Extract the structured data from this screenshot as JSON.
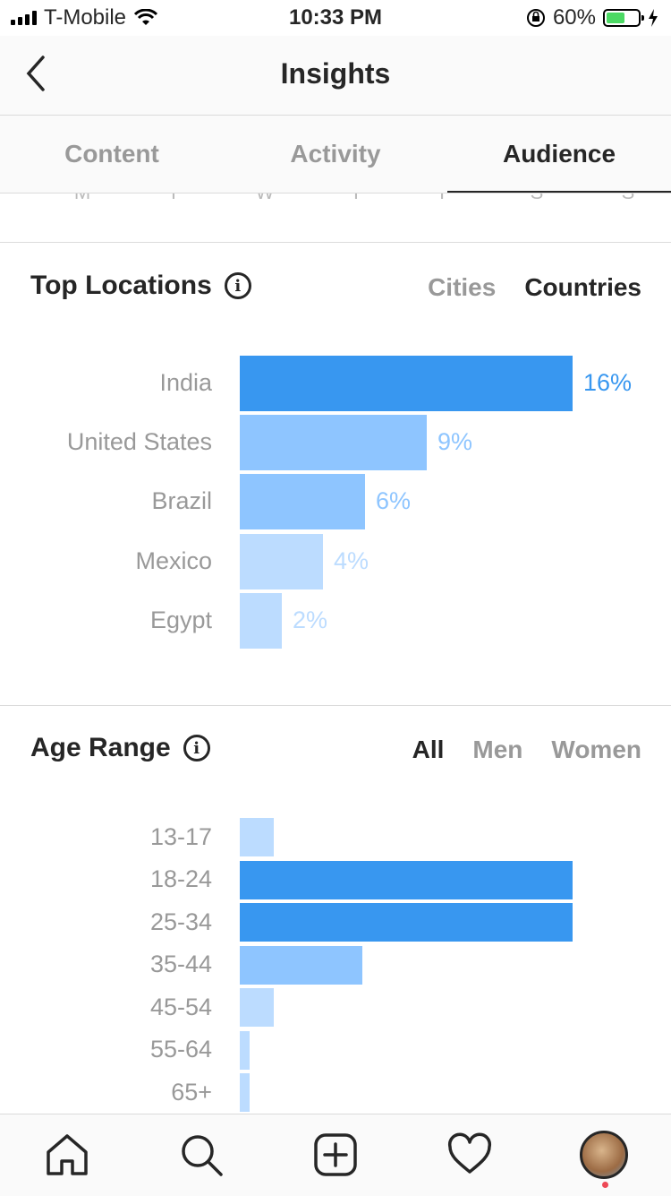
{
  "status": {
    "carrier": "T-Mobile",
    "time": "10:33 PM",
    "battery": "60%",
    "battery_level": 0.6
  },
  "header": {
    "title": "Insights"
  },
  "tabs": [
    {
      "label": "Content"
    },
    {
      "label": "Activity"
    },
    {
      "label": "Audience"
    }
  ],
  "days": [
    "M",
    "T",
    "W",
    "T",
    "F",
    "S",
    "S"
  ],
  "top_locations": {
    "title": "Top Locations",
    "filters": [
      {
        "label": "Cities"
      },
      {
        "label": "Countries"
      }
    ],
    "active_filter": "Countries"
  },
  "age_range": {
    "title": "Age Range",
    "filters": [
      {
        "label": "All"
      },
      {
        "label": "Men"
      },
      {
        "label": "Women"
      }
    ],
    "active_filter": "All"
  },
  "chart_data": [
    {
      "type": "bar",
      "title": "Top Locations",
      "categories": [
        "India",
        "United States",
        "Brazil",
        "Mexico",
        "Egypt"
      ],
      "values": [
        16,
        9,
        6,
        4,
        2
      ],
      "value_labels": [
        "16%",
        "9%",
        "6%",
        "4%",
        "2%"
      ],
      "colors": [
        "#3897f0",
        "#8ec5ff",
        "#8ec5ff",
        "#bcdcff",
        "#bcdcff"
      ],
      "label_colors": [
        "#3897f0",
        "#8ec5ff",
        "#8ec5ff",
        "#bcdcff",
        "#bcdcff"
      ],
      "xlim": [
        0,
        16
      ]
    },
    {
      "type": "bar",
      "title": "Age Range",
      "categories": [
        "13-17",
        "18-24",
        "25-34",
        "35-44",
        "45-54",
        "55-64",
        "65+"
      ],
      "values": [
        3.5,
        34,
        34,
        12.5,
        3.5,
        1,
        1
      ],
      "colors": [
        "#bcdcff",
        "#3897f0",
        "#3897f0",
        "#8ec5ff",
        "#bcdcff",
        "#bcdcff",
        "#bcdcff"
      ],
      "xlim": [
        0,
        34
      ]
    }
  ]
}
